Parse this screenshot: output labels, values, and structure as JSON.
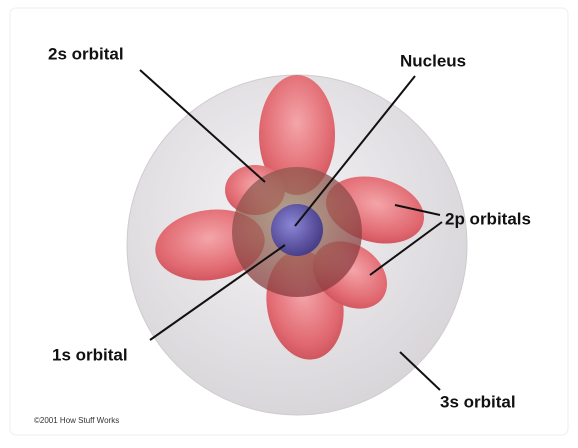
{
  "labels": [
    "2s orbital",
    "Nucleus",
    "2p orbitals",
    "1s orbital",
    "3s orbital"
  ],
  "credit": "©2001 How Stuff Works"
}
